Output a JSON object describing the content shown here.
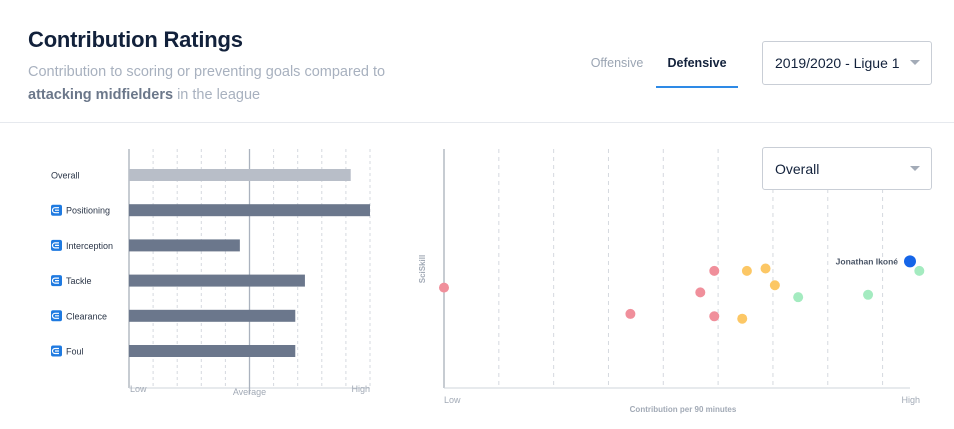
{
  "header": {
    "title": "Contribution Ratings",
    "subtitle_pre": "Contribution to scoring or preventing goals compared to",
    "subtitle_bold": "attacking midfielders",
    "subtitle_post": "in the league"
  },
  "tabs": [
    {
      "label": "Offensive",
      "active": false
    },
    {
      "label": "Defensive",
      "active": true
    }
  ],
  "season_select": {
    "value": "2019/2020 - Ligue 1"
  },
  "metric_select": {
    "value": "Overall"
  },
  "colors": {
    "overall_bar": "#b8bec8",
    "metric_bar": "#6b778c",
    "icon": "#1f7ae0",
    "average_line": "#aab2be",
    "highlight": "#1565e8",
    "red": "#f08f9b",
    "orange": "#fcc765",
    "green": "#a4ebc0"
  },
  "chart_data": [
    {
      "type": "bar",
      "orientation": "horizontal",
      "categories": [
        "Overall",
        "Positioning",
        "Interception",
        "Tackle",
        "Clearance",
        "Foul"
      ],
      "category_icons": [
        "",
        "defense-icon",
        "defense-icon",
        "defense-icon",
        "defense-icon",
        "defense-icon"
      ],
      "values": [
        0.92,
        1.0,
        0.46,
        0.73,
        0.69,
        0.69
      ],
      "xlim": [
        0,
        1
      ],
      "reference_line": 0.5,
      "tick_labels": [
        "Low",
        "Average",
        "High"
      ],
      "grid": true
    },
    {
      "type": "scatter",
      "xlabel": "Contribution per 90 minutes",
      "ylabel": "SciSkill",
      "x_tick_labels": [
        "Low",
        "High"
      ],
      "xlim": [
        0,
        1
      ],
      "ylim": [
        0,
        1
      ],
      "highlight_label": "Jonathan Ikoné",
      "points": [
        {
          "x": 0.0,
          "y": 0.42,
          "color": "red"
        },
        {
          "x": 0.4,
          "y": 0.31,
          "color": "red"
        },
        {
          "x": 0.55,
          "y": 0.4,
          "color": "red"
        },
        {
          "x": 0.58,
          "y": 0.49,
          "color": "red"
        },
        {
          "x": 0.58,
          "y": 0.3,
          "color": "red"
        },
        {
          "x": 0.64,
          "y": 0.29,
          "color": "orange"
        },
        {
          "x": 0.65,
          "y": 0.49,
          "color": "orange"
        },
        {
          "x": 0.69,
          "y": 0.5,
          "color": "orange"
        },
        {
          "x": 0.71,
          "y": 0.43,
          "color": "orange"
        },
        {
          "x": 0.76,
          "y": 0.38,
          "color": "green"
        },
        {
          "x": 0.91,
          "y": 0.39,
          "color": "green"
        },
        {
          "x": 1.02,
          "y": 0.49,
          "color": "green"
        },
        {
          "x": 1.0,
          "y": 0.53,
          "color": "highlight",
          "highlight": true
        }
      ]
    }
  ]
}
